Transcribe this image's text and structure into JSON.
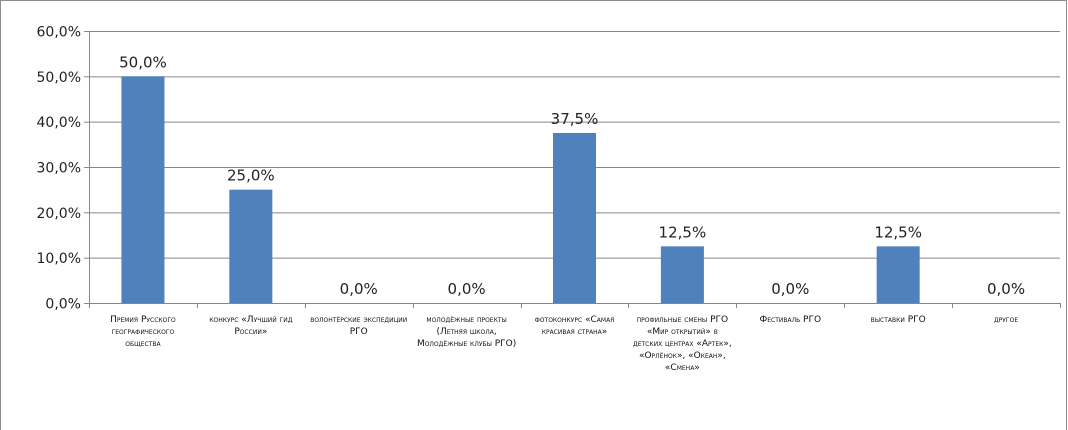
{
  "chart_data": {
    "type": "bar",
    "categories": [
      "Премия Русского географического общества",
      "конкурс «Лучший гид России»",
      "волонтёрские экспедиции РГО",
      "молодёжные проекты (Летняя школа, Молодёжные клубы РГО)",
      "фотоконкурс «Самая красивая страна»",
      "профильные смены РГО «Мир открытий» в детских центрах «Артек», «Орлёнок», «Океан», «Смена»",
      "Фестиваль РГО",
      "выставки РГО",
      "другое"
    ],
    "values": [
      50.0,
      25.0,
      0.0,
      0.0,
      37.5,
      12.5,
      0.0,
      12.5,
      0.0
    ],
    "data_labels": [
      "50,0%",
      "25,0%",
      "0,0%",
      "0,0%",
      "37,5%",
      "12,5%",
      "0,0%",
      "12,5%",
      "0,0%"
    ],
    "ylim": [
      0,
      60
    ],
    "yticks": [
      0,
      10,
      20,
      30,
      40,
      50,
      60
    ],
    "ytick_labels": [
      "0,0%",
      "10,0%",
      "20,0%",
      "30,0%",
      "40,0%",
      "50,0%",
      "60,0%"
    ],
    "grid": true,
    "legend": "none",
    "bar_color": "#4f81bd",
    "grid_color": "#868686"
  }
}
